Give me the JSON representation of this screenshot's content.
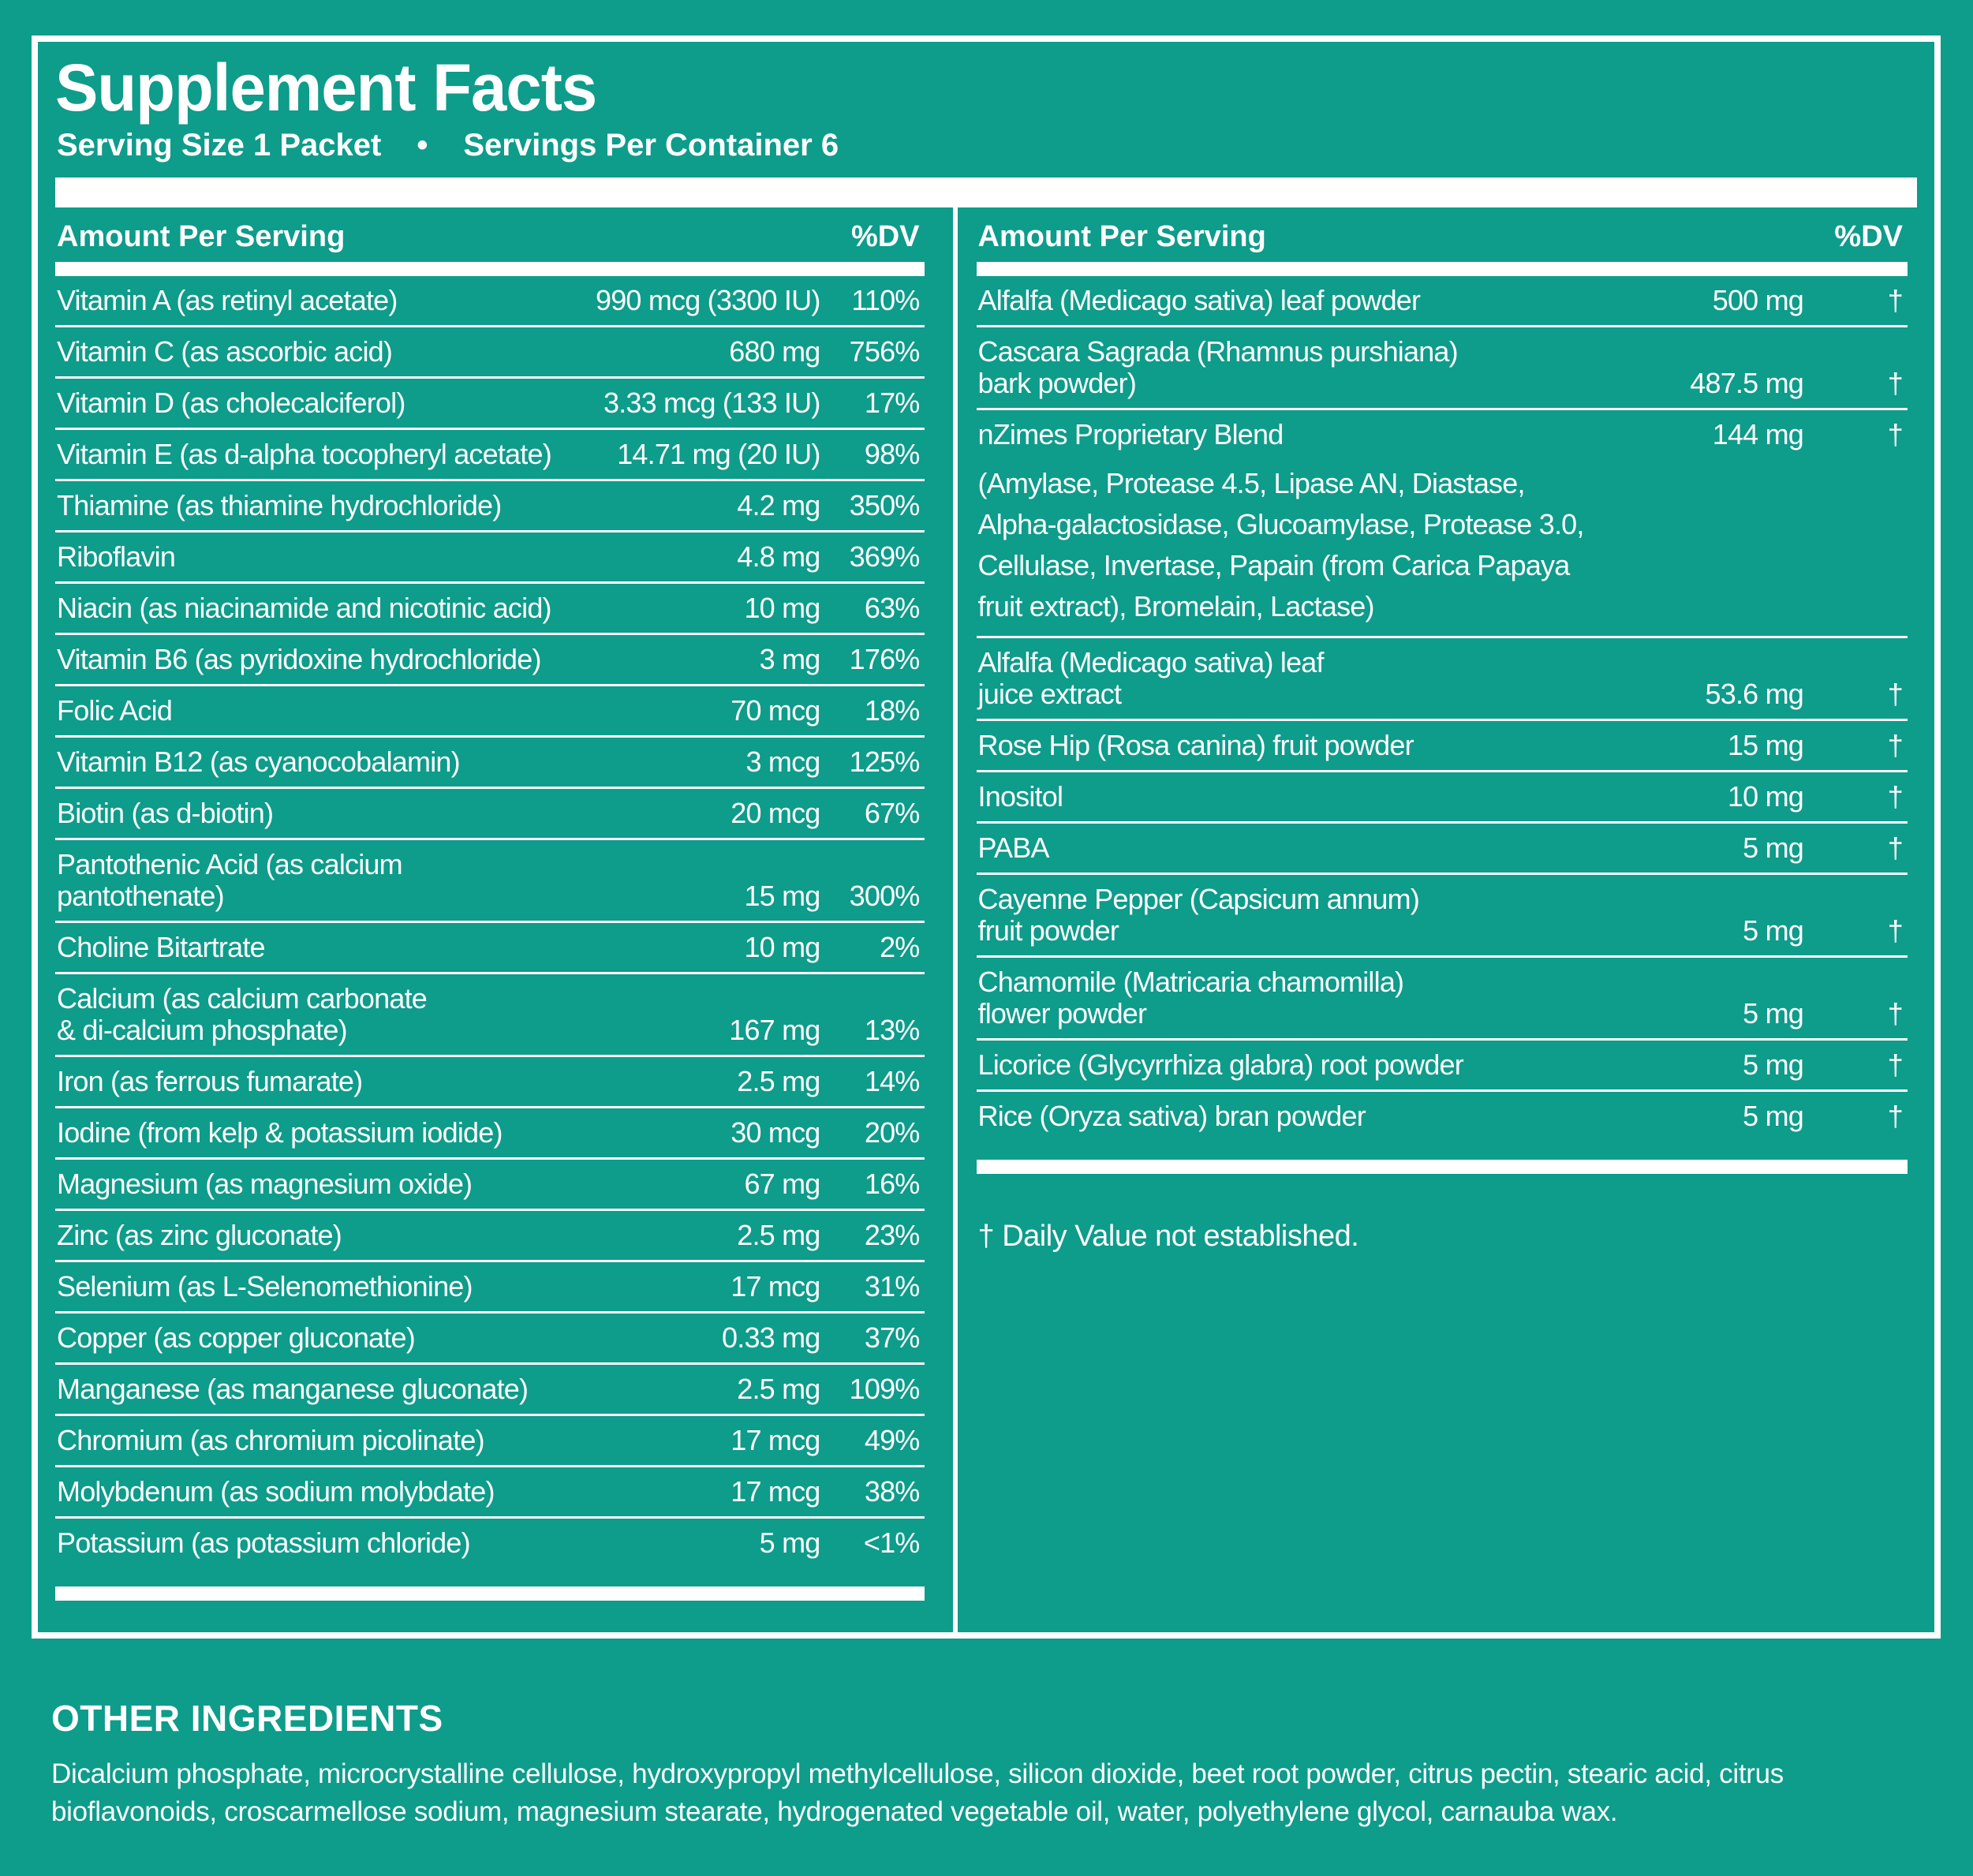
{
  "colors": {
    "background": "#0e9c8b",
    "text": "#ffffff"
  },
  "title": "Supplement Facts",
  "serving": {
    "size_label": "Serving Size 1 Packet",
    "bullet": "•",
    "per_container_label": "Servings Per Container 6"
  },
  "column_headers": {
    "amount": "Amount Per Serving",
    "dv": "%DV"
  },
  "left_rows": [
    {
      "name": "Vitamin A (as retinyl acetate)",
      "amount": "990 mcg (3300 IU)",
      "dv": "110%"
    },
    {
      "name": "Vitamin C (as ascorbic acid)",
      "amount": "680 mg",
      "dv": "756%"
    },
    {
      "name": "Vitamin D (as cholecalciferol)",
      "amount": "3.33 mcg (133 IU)",
      "dv": "17%"
    },
    {
      "name": "Vitamin E (as d-alpha tocopheryl acetate)",
      "amount": "14.71 mg (20 IU)",
      "dv": "98%"
    },
    {
      "name": "Thiamine (as thiamine hydrochloride)",
      "amount": "4.2 mg",
      "dv": "350%"
    },
    {
      "name": "Riboflavin",
      "amount": "4.8 mg",
      "dv": "369%"
    },
    {
      "name": "Niacin (as niacinamide and nicotinic acid)",
      "amount": "10 mg",
      "dv": "63%"
    },
    {
      "name": "Vitamin B6 (as pyridoxine hydrochloride)",
      "amount": "3 mg",
      "dv": "176%"
    },
    {
      "name": "Folic Acid",
      "amount": "70 mcg",
      "dv": "18%"
    },
    {
      "name": "Vitamin B12 (as cyanocobalamin)",
      "amount": "3 mcg",
      "dv": "125%"
    },
    {
      "name": "Biotin (as d-biotin)",
      "amount": "20 mcg",
      "dv": "67%"
    },
    {
      "name": "Pantothenic Acid (as calcium\npantothenate)",
      "amount": "15 mg",
      "dv": "300%"
    },
    {
      "name": "Choline Bitartrate",
      "amount": "10 mg",
      "dv": "2%"
    },
    {
      "name": "Calcium (as calcium carbonate\n& di-calcium phosphate)",
      "amount": "167 mg",
      "dv": "13%"
    },
    {
      "name": "Iron (as ferrous fumarate)",
      "amount": "2.5 mg",
      "dv": "14%"
    },
    {
      "name": "Iodine (from kelp & potassium iodide)",
      "amount": "30 mcg",
      "dv": "20%"
    },
    {
      "name": "Magnesium (as magnesium oxide)",
      "amount": "67 mg",
      "dv": "16%"
    },
    {
      "name": "Zinc (as zinc gluconate)",
      "amount": "2.5 mg",
      "dv": "23%"
    },
    {
      "name": "Selenium (as L-Selenomethionine)",
      "amount": "17 mcg",
      "dv": "31%"
    },
    {
      "name": "Copper (as copper gluconate)",
      "amount": "0.33 mg",
      "dv": "37%"
    },
    {
      "name": "Manganese (as manganese gluconate)",
      "amount": "2.5 mg",
      "dv": "109%"
    },
    {
      "name": "Chromium (as chromium picolinate)",
      "amount": "17 mcg",
      "dv": "49%"
    },
    {
      "name": "Molybdenum (as sodium molybdate)",
      "amount": "17 mcg",
      "dv": "38%"
    },
    {
      "name": "Potassium (as potassium chloride)",
      "amount": "5 mg",
      "dv": "<1%"
    }
  ],
  "right_rows": [
    {
      "name": "Alfalfa (Medicago sativa) leaf powder",
      "amount": "500 mg",
      "dv": "†"
    },
    {
      "name": "Cascara Sagrada (Rhamnus purshiana)\nbark powder)",
      "amount": "487.5 mg",
      "dv": "†"
    },
    {
      "name": "nZimes Proprietary Blend",
      "amount": "144 mg",
      "dv": "†",
      "detail": "(Amylase, Protease 4.5, Lipase AN, Diastase,\nAlpha-galactosidase, Glucoamylase, Protease 3.0,\nCellulase, Invertase, Papain (from Carica Papaya\nfruit extract), Bromelain, Lactase)"
    },
    {
      "name": "Alfalfa (Medicago sativa) leaf\njuice extract",
      "amount": "53.6 mg",
      "dv": "†"
    },
    {
      "name": "Rose Hip (Rosa canina) fruit powder",
      "amount": "15 mg",
      "dv": "†"
    },
    {
      "name": "Inositol",
      "amount": "10 mg",
      "dv": "†"
    },
    {
      "name": "PABA",
      "amount": "5 mg",
      "dv": "†"
    },
    {
      "name": "Cayenne Pepper (Capsicum annum)\nfruit powder",
      "amount": "5 mg",
      "dv": "†"
    },
    {
      "name": "Chamomile (Matricaria chamomilla)\nflower powder",
      "amount": "5 mg",
      "dv": "†"
    },
    {
      "name": "Licorice (Glycyrrhiza glabra) root powder",
      "amount": "5 mg",
      "dv": "†"
    },
    {
      "name": "Rice (Oryza sativa) bran powder",
      "amount": "5 mg",
      "dv": "†"
    }
  ],
  "footnote": "† Daily Value not established.",
  "other_ingredients": {
    "heading": "OTHER INGREDIENTS",
    "text": "Dicalcium phosphate, microcrystalline cellulose, hydroxypropyl methylcellulose, silicon dioxide, beet root powder, citrus pectin, stearic acid, citrus bioflavonoids, croscarmellose sodium, magnesium stearate, hydrogenated vegetable oil, water, polyethylene glycol, carnauba wax."
  }
}
